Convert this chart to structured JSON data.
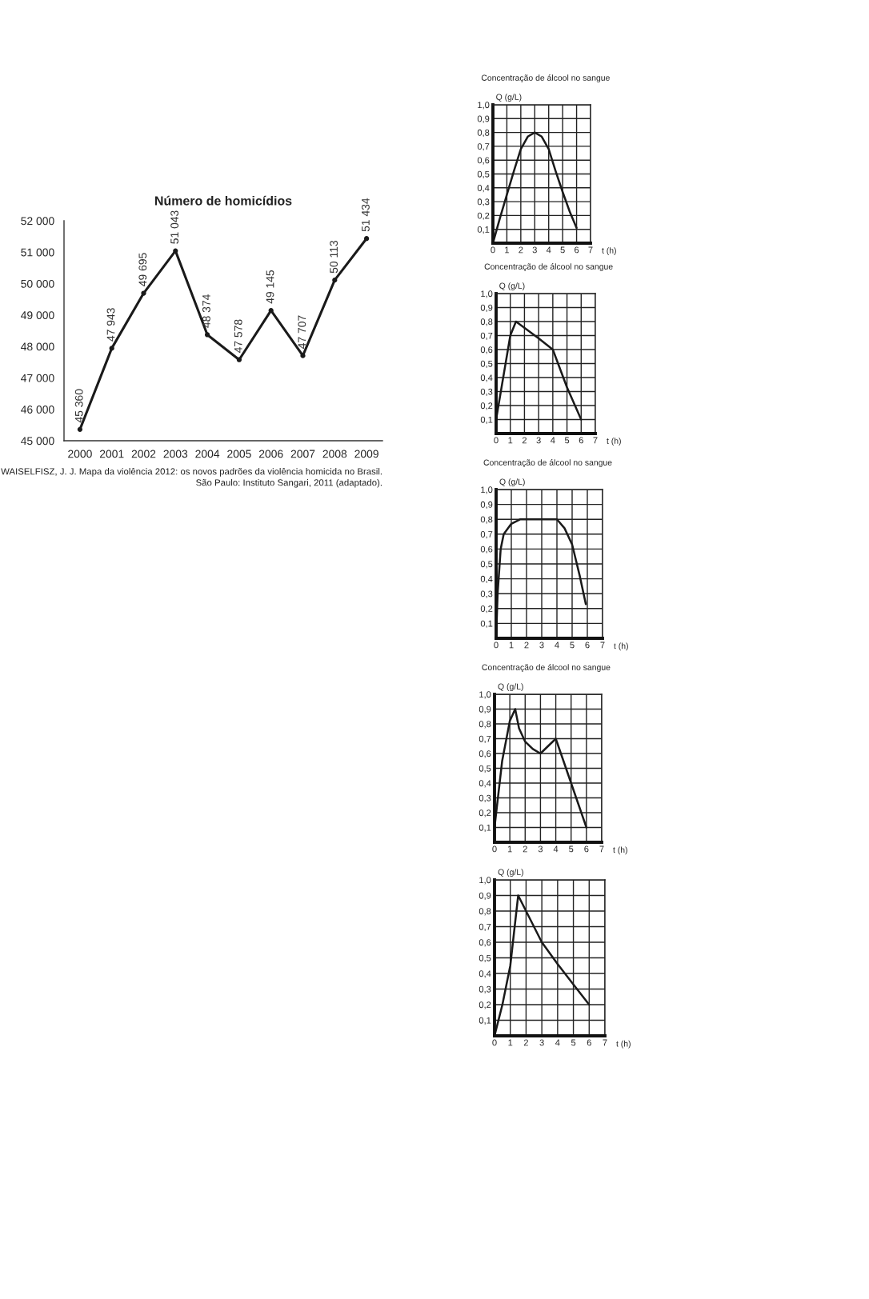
{
  "chart_data": [
    {
      "type": "line",
      "title": "Número de homicídios",
      "categories": [
        "2000",
        "2001",
        "2002",
        "2003",
        "2004",
        "2005",
        "2006",
        "2007",
        "2008",
        "2009"
      ],
      "series": [
        {
          "color": "#1a1a1a",
          "values": [
            45360,
            47943,
            49695,
            51043,
            48374,
            47578,
            49145,
            47707,
            50113,
            51434
          ]
        }
      ],
      "value_labels": [
        "45 360",
        "47 943",
        "49 695",
        "51 043",
        "48 374",
        "47 578",
        "49 145",
        "47 707",
        "50 113",
        "51 434"
      ],
      "ylim": [
        45000,
        52000
      ],
      "yticks": [
        {
          "value": 45000,
          "label": "45 000"
        },
        {
          "value": 46000,
          "label": "46 000"
        },
        {
          "value": 47000,
          "label": "47 000"
        },
        {
          "value": 48000,
          "label": "48 000"
        },
        {
          "value": 49000,
          "label": "49 000"
        },
        {
          "value": 50000,
          "label": "50 000"
        },
        {
          "value": 51000,
          "label": "51 000"
        },
        {
          "value": 52000,
          "label": "52 000"
        }
      ],
      "marker": "circle",
      "grid": false,
      "legend": false,
      "annotations": [
        "WAISELFISZ, J. J. Mapa da violência 2012: os novos padrões da violência homicida no Brasil.",
        "São Paulo: Instituto Sangari, 2011 (adaptado)."
      ]
    },
    {
      "type": "line",
      "title": "Concentração de álcool no sangue",
      "xlabel": "t (h)",
      "ylabel": "Q (g/L)",
      "series": [
        {
          "color": "#1a1a1a",
          "x": [
            0,
            0.5,
            1,
            1.5,
            2,
            2.5,
            3,
            3.5,
            4,
            4.5,
            5,
            5.5,
            6
          ],
          "values": [
            0,
            0.18,
            0.35,
            0.52,
            0.68,
            0.77,
            0.8,
            0.77,
            0.68,
            0.52,
            0.37,
            0.23,
            0.11
          ]
        }
      ],
      "xlim": [
        0,
        7
      ],
      "xticks": [
        0,
        1,
        2,
        3,
        4,
        5,
        6,
        7
      ],
      "ylim": [
        0,
        1.0
      ],
      "yticks": [
        {
          "value": 0.1,
          "label": "0,1"
        },
        {
          "value": 0.2,
          "label": "0,2"
        },
        {
          "value": 0.3,
          "label": "0,3"
        },
        {
          "value": 0.4,
          "label": "0,4"
        },
        {
          "value": 0.5,
          "label": "0,5"
        },
        {
          "value": 0.6,
          "label": "0,6"
        },
        {
          "value": 0.7,
          "label": "0,7"
        },
        {
          "value": 0.8,
          "label": "0,8"
        },
        {
          "value": 0.9,
          "label": "0,9"
        },
        {
          "value": 1.0,
          "label": "1,0"
        }
      ],
      "grid": true,
      "marker": "none",
      "legend": false
    },
    {
      "type": "line",
      "title": "Concentração de álcool no sangue",
      "xlabel": "t (h)",
      "ylabel": "Q (g/L)",
      "series": [
        {
          "color": "#1a1a1a",
          "x": [
            0,
            1,
            1.4,
            3,
            4,
            5,
            6
          ],
          "values": [
            0.1,
            0.7,
            0.8,
            0.68,
            0.6,
            0.33,
            0.1
          ]
        }
      ],
      "xlim": [
        0,
        7
      ],
      "xticks": [
        0,
        1,
        2,
        3,
        4,
        5,
        6,
        7
      ],
      "ylim": [
        0,
        1.0
      ],
      "yticks": [
        {
          "value": 0.1,
          "label": "0,1"
        },
        {
          "value": 0.2,
          "label": "0,2"
        },
        {
          "value": 0.3,
          "label": "0,3"
        },
        {
          "value": 0.4,
          "label": "0,4"
        },
        {
          "value": 0.5,
          "label": "0,5"
        },
        {
          "value": 0.6,
          "label": "0,6"
        },
        {
          "value": 0.7,
          "label": "0,7"
        },
        {
          "value": 0.8,
          "label": "0,8"
        },
        {
          "value": 0.9,
          "label": "0,9"
        },
        {
          "value": 1.0,
          "label": "1,0"
        }
      ],
      "grid": true,
      "marker": "none",
      "legend": false
    },
    {
      "type": "line",
      "title": "Concentração de álcool no sangue",
      "xlabel": "t (h)",
      "ylabel": "Q (g/L)",
      "series": [
        {
          "color": "#1a1a1a",
          "x": [
            0,
            0.1,
            0.3,
            0.5,
            1,
            1.6,
            4,
            4.5,
            5,
            5.5,
            5.9
          ],
          "values": [
            0,
            0.3,
            0.6,
            0.7,
            0.77,
            0.8,
            0.8,
            0.74,
            0.63,
            0.42,
            0.23
          ]
        }
      ],
      "xlim": [
        0,
        7
      ],
      "xticks": [
        0,
        1,
        2,
        3,
        4,
        5,
        6,
        7
      ],
      "ylim": [
        0,
        1.0
      ],
      "yticks": [
        {
          "value": 0.1,
          "label": "0,1"
        },
        {
          "value": 0.2,
          "label": "0,2"
        },
        {
          "value": 0.3,
          "label": "0,3"
        },
        {
          "value": 0.4,
          "label": "0,4"
        },
        {
          "value": 0.5,
          "label": "0,5"
        },
        {
          "value": 0.6,
          "label": "0,6"
        },
        {
          "value": 0.7,
          "label": "0,7"
        },
        {
          "value": 0.8,
          "label": "0,8"
        },
        {
          "value": 0.9,
          "label": "0,9"
        },
        {
          "value": 1.0,
          "label": "1,0"
        }
      ],
      "grid": true,
      "marker": "none",
      "legend": false
    },
    {
      "type": "line",
      "title": "Concentração de álcool no sangue",
      "xlabel": "t (h)",
      "ylabel": "Q (g/L)",
      "series": [
        {
          "color": "#1a1a1a",
          "x": [
            0,
            0.5,
            1,
            1.35,
            1.6,
            2,
            2.5,
            3,
            4,
            5,
            6
          ],
          "values": [
            0.1,
            0.55,
            0.82,
            0.9,
            0.77,
            0.68,
            0.63,
            0.6,
            0.7,
            0.4,
            0.1
          ]
        }
      ],
      "xlim": [
        0,
        7
      ],
      "xticks": [
        0,
        1,
        2,
        3,
        4,
        5,
        6,
        7
      ],
      "ylim": [
        0,
        1.0
      ],
      "yticks": [
        {
          "value": 0.1,
          "label": "0,1"
        },
        {
          "value": 0.2,
          "label": "0,2"
        },
        {
          "value": 0.3,
          "label": "0,3"
        },
        {
          "value": 0.4,
          "label": "0,4"
        },
        {
          "value": 0.5,
          "label": "0,5"
        },
        {
          "value": 0.6,
          "label": "0,6"
        },
        {
          "value": 0.7,
          "label": "0,7"
        },
        {
          "value": 0.8,
          "label": "0,8"
        },
        {
          "value": 0.9,
          "label": "0,9"
        },
        {
          "value": 1.0,
          "label": "1,0"
        }
      ],
      "grid": true,
      "marker": "none",
      "legend": false
    },
    {
      "type": "line",
      "xlabel": "t (h)",
      "ylabel": "Q (g/L)",
      "series": [
        {
          "color": "#1a1a1a",
          "x": [
            0,
            0.5,
            1,
            1.5,
            3,
            4,
            5,
            6
          ],
          "values": [
            0,
            0.2,
            0.45,
            0.9,
            0.6,
            0.46,
            0.33,
            0.2
          ]
        }
      ],
      "xlim": [
        0,
        7
      ],
      "xticks": [
        0,
        1,
        2,
        3,
        4,
        5,
        6,
        7
      ],
      "ylim": [
        0,
        1.0
      ],
      "yticks": [
        {
          "value": 0.1,
          "label": "0,1"
        },
        {
          "value": 0.2,
          "label": "0,2"
        },
        {
          "value": 0.3,
          "label": "0,3"
        },
        {
          "value": 0.4,
          "label": "0,4"
        },
        {
          "value": 0.5,
          "label": "0,5"
        },
        {
          "value": 0.6,
          "label": "0,6"
        },
        {
          "value": 0.7,
          "label": "0,7"
        },
        {
          "value": 0.8,
          "label": "0,8"
        },
        {
          "value": 0.9,
          "label": "0,9"
        },
        {
          "value": 1.0,
          "label": "1,0"
        }
      ],
      "grid": true,
      "marker": "none",
      "legend": false
    }
  ]
}
